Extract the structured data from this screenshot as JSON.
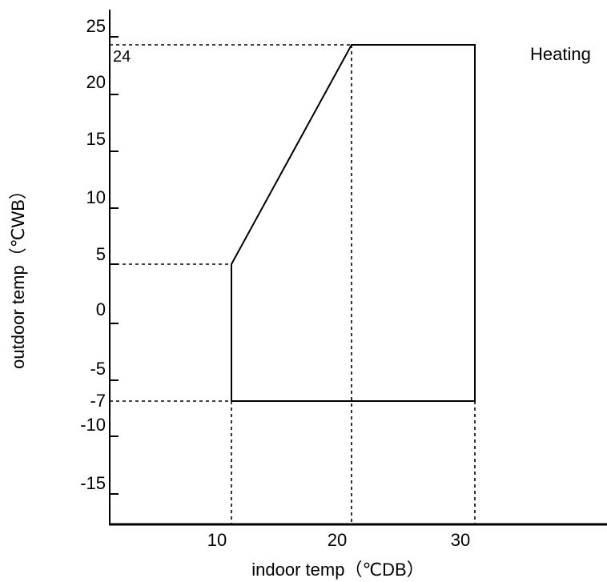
{
  "chart_data": {
    "type": "line",
    "title": "",
    "mode_label": "Heating",
    "xlabel": "indoor temp（℃DB）",
    "ylabel": "outdoor temp（℃WB）",
    "xlim": [
      0,
      40
    ],
    "ylim": [
      -20,
      26
    ],
    "x_ticks": [
      10,
      20,
      30
    ],
    "y_ticks": [
      25,
      20,
      15,
      10,
      5,
      0,
      -5,
      -10,
      -15
    ],
    "y_extra_labels": [
      {
        "value": -7,
        "label": "-7"
      },
      {
        "value": 24,
        "label": "24"
      }
    ],
    "grid": false,
    "series": [
      {
        "values": [
          {
            "x": 10,
            "y": -7
          },
          {
            "x": 10,
            "y": 5
          },
          {
            "x": 20,
            "y": 24
          },
          {
            "x": 30,
            "y": 24
          },
          {
            "x": 30,
            "y": -7
          },
          {
            "x": 10,
            "y": -7
          }
        ]
      }
    ],
    "reference_lines": [
      {
        "orientation": "horizontal",
        "y": 24,
        "x_to": 20
      },
      {
        "orientation": "horizontal",
        "y": 5,
        "x_to": 10
      },
      {
        "orientation": "horizontal",
        "y": -7,
        "x_to": 10
      },
      {
        "orientation": "vertical",
        "x": 10,
        "y_from": -7
      },
      {
        "orientation": "vertical",
        "x": 20,
        "y_from": 24
      },
      {
        "orientation": "vertical",
        "x": 30,
        "y_from": -7
      }
    ]
  }
}
